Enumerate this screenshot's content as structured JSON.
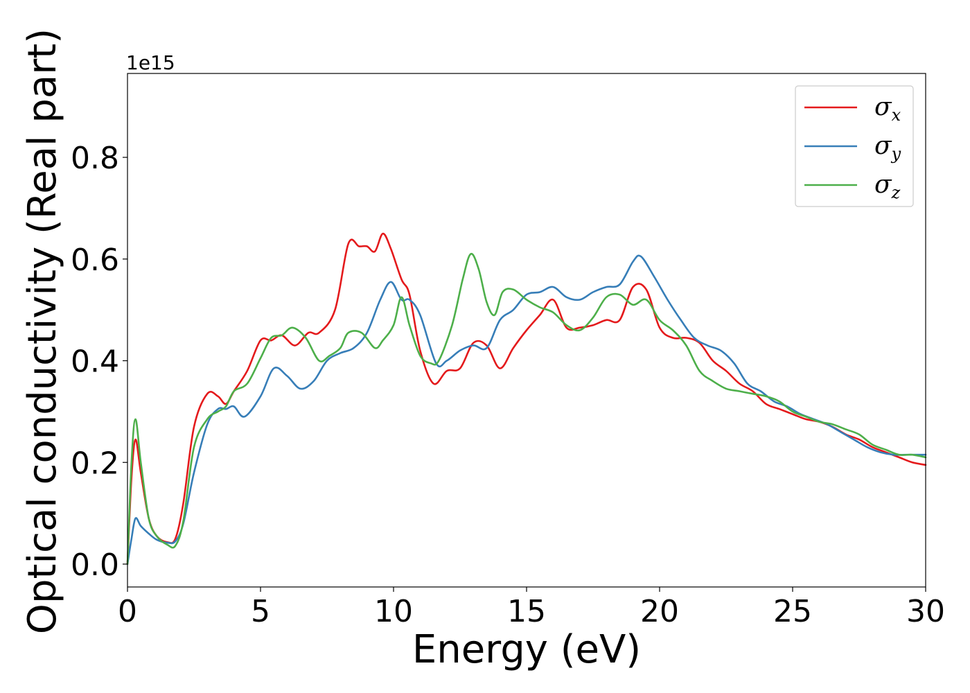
{
  "chart_data": {
    "type": "line",
    "xlabel": "Energy (eV)",
    "ylabel": "Optical conductivity (Real part)",
    "y_offset_label": "1e15",
    "xlim": [
      0,
      30
    ],
    "ylim": [
      -0.045,
      0.965
    ],
    "xticks": [
      0,
      5,
      10,
      15,
      20,
      25,
      30
    ],
    "xtick_labels": [
      "0",
      "5",
      "10",
      "15",
      "20",
      "25",
      "30"
    ],
    "yticks": [
      0.0,
      0.2,
      0.4,
      0.6,
      0.8
    ],
    "ytick_labels": [
      "0.0",
      "0.2",
      "0.4",
      "0.6",
      "0.8"
    ],
    "grid": false,
    "legend_position": "top-right",
    "series": [
      {
        "name": "σx",
        "symbol": "σ",
        "subscript": "x",
        "color": "#e41a1c",
        "x": [
          0,
          0.15,
          0.3,
          0.5,
          0.8,
          1.1,
          1.5,
          1.8,
          2.1,
          2.5,
          3.0,
          3.4,
          3.7,
          4.0,
          4.5,
          5.0,
          5.4,
          5.8,
          6.3,
          6.8,
          7.2,
          7.8,
          8.3,
          8.7,
          9.0,
          9.3,
          9.6,
          9.9,
          10.3,
          10.6,
          11.0,
          11.5,
          12.0,
          12.5,
          13.0,
          13.5,
          14.0,
          14.5,
          15.0,
          15.5,
          16.0,
          16.5,
          17.0,
          17.5,
          18.0,
          18.5,
          19.0,
          19.5,
          20.0,
          20.5,
          21.0,
          21.5,
          22.0,
          22.5,
          23.0,
          23.5,
          24.0,
          24.5,
          25.0,
          25.5,
          26.0,
          26.5,
          27.0,
          27.5,
          28.0,
          28.5,
          29.0,
          29.5,
          30.0
        ],
        "y": [
          0.0,
          0.17,
          0.245,
          0.18,
          0.09,
          0.055,
          0.043,
          0.05,
          0.12,
          0.27,
          0.335,
          0.33,
          0.315,
          0.34,
          0.38,
          0.44,
          0.44,
          0.45,
          0.43,
          0.455,
          0.455,
          0.5,
          0.63,
          0.625,
          0.625,
          0.615,
          0.65,
          0.62,
          0.56,
          0.53,
          0.42,
          0.355,
          0.38,
          0.385,
          0.435,
          0.43,
          0.385,
          0.425,
          0.46,
          0.49,
          0.52,
          0.465,
          0.465,
          0.47,
          0.48,
          0.48,
          0.545,
          0.54,
          0.465,
          0.445,
          0.445,
          0.435,
          0.4,
          0.38,
          0.355,
          0.34,
          0.315,
          0.305,
          0.295,
          0.285,
          0.28,
          0.27,
          0.255,
          0.245,
          0.23,
          0.22,
          0.21,
          0.2,
          0.195
        ]
      },
      {
        "name": "σy",
        "symbol": "σ",
        "subscript": "y",
        "color": "#377eb8",
        "x": [
          0,
          0.15,
          0.3,
          0.5,
          0.8,
          1.1,
          1.5,
          1.8,
          2.1,
          2.5,
          3.0,
          3.4,
          3.7,
          4.0,
          4.4,
          5.0,
          5.5,
          6.0,
          6.5,
          7.0,
          7.5,
          8.0,
          8.5,
          9.0,
          9.5,
          9.9,
          10.3,
          10.6,
          11.0,
          11.6,
          12.0,
          12.5,
          13.0,
          13.5,
          14.0,
          14.5,
          15.0,
          15.5,
          16.0,
          16.5,
          17.0,
          17.5,
          18.0,
          18.5,
          19.0,
          19.3,
          19.8,
          20.3,
          20.8,
          21.3,
          21.8,
          22.3,
          22.8,
          23.3,
          23.8,
          24.3,
          24.8,
          25.3,
          25.8,
          26.3,
          26.8,
          27.3,
          27.8,
          28.3,
          28.8,
          29.3,
          30.0
        ],
        "y": [
          0.0,
          0.05,
          0.09,
          0.075,
          0.06,
          0.048,
          0.042,
          0.045,
          0.08,
          0.18,
          0.275,
          0.305,
          0.305,
          0.31,
          0.29,
          0.33,
          0.385,
          0.37,
          0.345,
          0.36,
          0.4,
          0.415,
          0.425,
          0.455,
          0.52,
          0.555,
          0.52,
          0.52,
          0.49,
          0.395,
          0.4,
          0.42,
          0.43,
          0.425,
          0.48,
          0.5,
          0.53,
          0.535,
          0.545,
          0.525,
          0.52,
          0.535,
          0.545,
          0.55,
          0.595,
          0.605,
          0.565,
          0.52,
          0.48,
          0.445,
          0.43,
          0.42,
          0.395,
          0.355,
          0.34,
          0.32,
          0.31,
          0.295,
          0.285,
          0.275,
          0.26,
          0.245,
          0.23,
          0.22,
          0.215,
          0.215,
          0.215
        ]
      },
      {
        "name": "σz",
        "symbol": "σ",
        "subscript": "z",
        "color": "#4daf4a",
        "x": [
          0,
          0.15,
          0.3,
          0.5,
          0.8,
          1.1,
          1.5,
          1.8,
          2.1,
          2.5,
          3.0,
          3.4,
          3.7,
          4.0,
          4.5,
          5.0,
          5.4,
          5.8,
          6.2,
          6.7,
          7.2,
          7.6,
          8.0,
          8.3,
          8.8,
          9.3,
          9.6,
          10.0,
          10.3,
          10.6,
          11.0,
          11.4,
          11.7,
          12.2,
          12.6,
          12.9,
          13.2,
          13.5,
          13.8,
          14.1,
          14.5,
          15.0,
          15.5,
          16.0,
          16.5,
          17.0,
          17.5,
          18.0,
          18.5,
          19.0,
          19.5,
          20.0,
          20.5,
          21.0,
          21.5,
          22.0,
          22.5,
          23.0,
          23.5,
          24.0,
          24.5,
          25.0,
          25.5,
          26.0,
          26.5,
          27.0,
          27.5,
          28.0,
          28.5,
          29.0,
          29.5,
          30.0
        ],
        "y": [
          0.0,
          0.2,
          0.285,
          0.2,
          0.09,
          0.055,
          0.038,
          0.036,
          0.085,
          0.23,
          0.285,
          0.3,
          0.31,
          0.34,
          0.355,
          0.405,
          0.445,
          0.45,
          0.465,
          0.445,
          0.4,
          0.41,
          0.425,
          0.455,
          0.455,
          0.425,
          0.44,
          0.47,
          0.525,
          0.47,
          0.41,
          0.395,
          0.4,
          0.47,
          0.56,
          0.61,
          0.58,
          0.515,
          0.49,
          0.535,
          0.54,
          0.52,
          0.505,
          0.495,
          0.47,
          0.46,
          0.485,
          0.525,
          0.53,
          0.51,
          0.52,
          0.48,
          0.46,
          0.43,
          0.38,
          0.36,
          0.345,
          0.34,
          0.335,
          0.33,
          0.32,
          0.3,
          0.29,
          0.28,
          0.275,
          0.265,
          0.255,
          0.235,
          0.225,
          0.215,
          0.215,
          0.21
        ]
      }
    ]
  }
}
